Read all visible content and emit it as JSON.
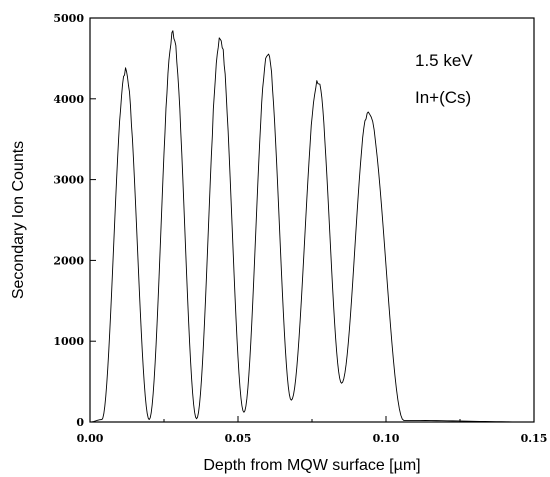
{
  "chart_data": {
    "type": "line",
    "xlabel": "Depth from MQW surface [µm]",
    "ylabel": "Secondary Ion Counts",
    "xlim": [
      0,
      0.15
    ],
    "ylim": [
      0,
      5000
    ],
    "x_ticks": [
      "0.00",
      "0.05",
      "0.10",
      "0.15"
    ],
    "y_ticks": [
      "0",
      "1000",
      "2000",
      "3000",
      "4000",
      "5000"
    ],
    "annotations": [
      "1.5 keV",
      "In+(Cs)"
    ],
    "grid": false,
    "series": [
      {
        "peaks": [
          {
            "x": 0.012,
            "y": 4350
          },
          {
            "x": 0.028,
            "y": 4800
          },
          {
            "x": 0.044,
            "y": 4750
          },
          {
            "x": 0.06,
            "y": 4580
          },
          {
            "x": 0.077,
            "y": 4220
          },
          {
            "x": 0.094,
            "y": 3850
          }
        ],
        "minima": [
          {
            "x": 0.02,
            "y": 30
          },
          {
            "x": 0.036,
            "y": 40
          },
          {
            "x": 0.052,
            "y": 120
          },
          {
            "x": 0.068,
            "y": 270
          },
          {
            "x": 0.085,
            "y": 480
          }
        ],
        "baseline": [
          {
            "x": 0.0,
            "y": 0
          },
          {
            "x": 0.004,
            "y": 30
          },
          {
            "x": 0.106,
            "y": 20
          },
          {
            "x": 0.15,
            "y": 0
          }
        ]
      }
    ]
  },
  "color": "#000000"
}
